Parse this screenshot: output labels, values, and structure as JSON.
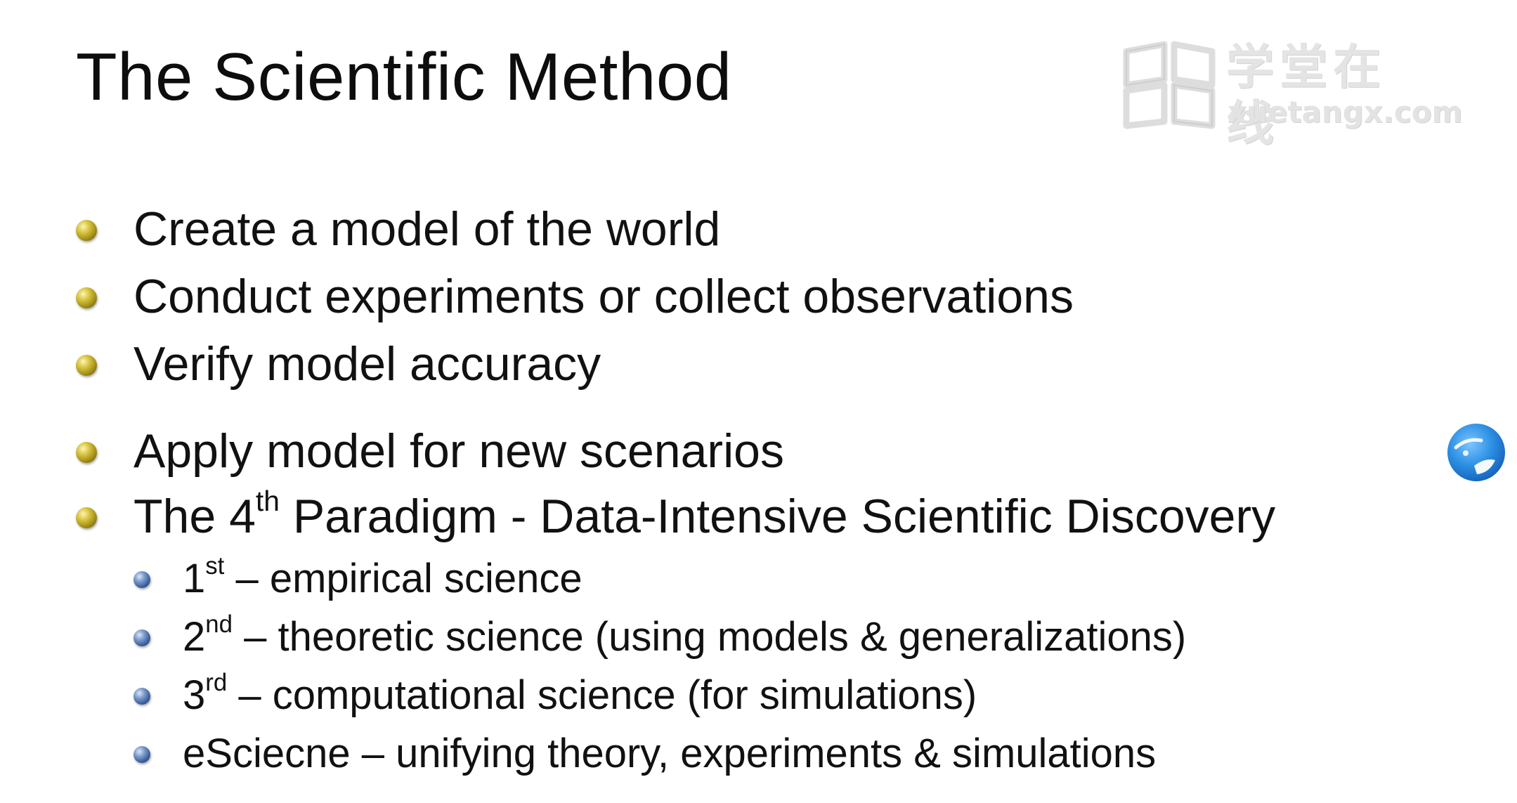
{
  "slide": {
    "title": "The Scientific Method"
  },
  "watermark": {
    "chinese_text": "学堂在线",
    "domain_text": "xuetangx.com",
    "icon": "open-book-logo-icon"
  },
  "bullets": [
    {
      "text": "Create a model of the world"
    },
    {
      "text": "Conduct experiments or collect observations"
    },
    {
      "text": "Verify model accuracy"
    },
    {
      "text": "Apply model for new scenarios"
    },
    {
      "pre": "The 4",
      "sup": "th",
      "post": " Paradigm - Data-Intensive Scientific Discovery"
    }
  ],
  "sub_bullets": [
    {
      "pre": "1",
      "sup": "st",
      "post": " – empirical science"
    },
    {
      "pre": "2",
      "sup": "nd",
      "post": " – theoretic science (using models & generalizations)"
    },
    {
      "pre": "3",
      "sup": "rd",
      "post": " – computational science (for simulations)"
    },
    {
      "pre": "eSciecne – unifying theory, experiments & simulations",
      "sup": "",
      "post": ""
    }
  ],
  "floating_widget": {
    "icon": "floating-assistant-ball-icon"
  },
  "colors": {
    "main_bullet": "#c9b534",
    "sub_bullet": "#4f73ad",
    "text": "#111111",
    "widget_blue": "#2b8fe3"
  }
}
